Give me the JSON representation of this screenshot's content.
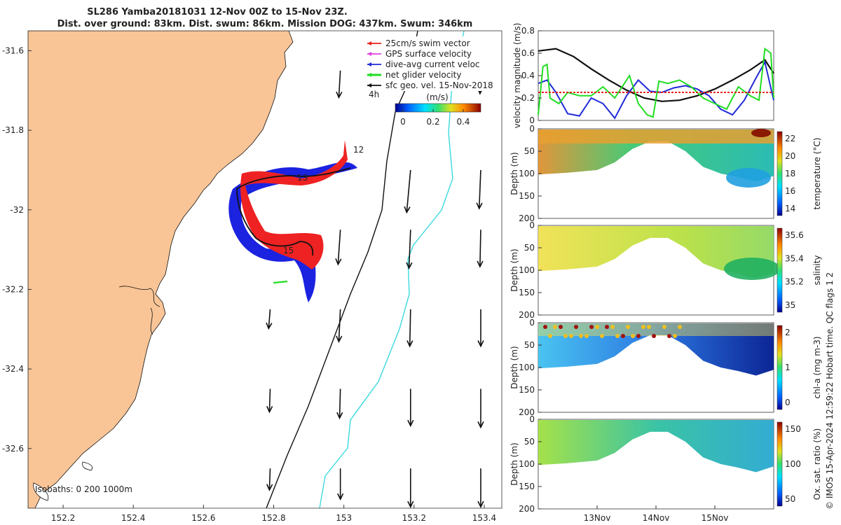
{
  "header": {
    "title_line1": "SL286 Yamba20181031 12-Nov 00Z to 15-Nov 23Z.",
    "title_line2": "Dist. over ground: 83km. Dist. swum: 86km. Mission DOG: 437km. Swum: 346km"
  },
  "map": {
    "lat_ticks": [
      "-31.6",
      "-31.8",
      "-32",
      "-32.2",
      "-32.4",
      "-32.6"
    ],
    "lon_ticks": [
      "152.2",
      "152.4",
      "152.6",
      "152.8",
      "153",
      "153.2",
      "153.4"
    ],
    "day_labels": [
      "12",
      "13",
      "15"
    ],
    "legend": [
      {
        "label": "25cm/s swim vector",
        "color": "#e8201a"
      },
      {
        "label": "GPS surface velocity",
        "color": "#e040e0"
      },
      {
        "label": "dive-avg current veloc",
        "color": "#1f2ad8"
      },
      {
        "label": "net glider velocity",
        "color": "#22dd22"
      },
      {
        "label": "sfc geo. vel. 15-Nov-2018",
        "color": "#111111"
      }
    ],
    "legend_note": "4h",
    "colorbar_label": "(m/s)",
    "colorbar_ticks": [
      "0",
      "0.2",
      "0.4"
    ],
    "bathy_label": "Isobaths:  0   200  1000m",
    "colors": {
      "land": "#f9c597",
      "track_dive": "#1b22e0",
      "track_swim": "#ee2222",
      "isobath_200": "#111111",
      "isobath_1000": "#3cd9e0"
    }
  },
  "velocity_panel": {
    "ylabel": "velocity magnitude (m/s)",
    "yticks": [
      "0",
      "0.2",
      "0.4",
      "0.6",
      "0.8"
    ]
  },
  "sections": [
    {
      "id": "temperature",
      "ylabel": "Depth (m)",
      "cbar_label": "temperature (°C)",
      "cbar_ticks": [
        "14",
        "16",
        "18",
        "20",
        "22"
      ],
      "yticks": [
        "0",
        "50",
        "100",
        "150",
        "200"
      ]
    },
    {
      "id": "salinity",
      "ylabel": "Depth (m)",
      "cbar_label": "salinity",
      "cbar_ticks": [
        "35",
        "35.2",
        "35.4",
        "35.6"
      ],
      "yticks": [
        "0",
        "50",
        "100",
        "150",
        "200"
      ]
    },
    {
      "id": "chla",
      "ylabel": "Depth (m)",
      "cbar_label": "chl-a (mg m-3)",
      "cbar_ticks": [
        "0",
        "1",
        "2"
      ],
      "yticks": [
        "0",
        "50",
        "100",
        "150",
        "200"
      ]
    },
    {
      "id": "oxygen",
      "ylabel": "Depth (m)",
      "cbar_label": "Ox. sat. ratio (%)",
      "cbar_ticks": [
        "50",
        "100",
        "150"
      ],
      "yticks": [
        "0",
        "50",
        "100",
        "150",
        "200"
      ]
    }
  ],
  "time_ticks": [
    "13Nov",
    "14Nov",
    "15Nov"
  ],
  "credit": "© IMOS 15-Apr-2024 12:59:22 Hobart time. QC flags 1  2",
  "chart_data": [
    {
      "type": "scatter",
      "name": "map",
      "xlim": [
        152.1,
        153.45
      ],
      "ylim": [
        -32.75,
        -31.55
      ],
      "track_points": [
        [
          152.68,
          -31.92
        ],
        [
          152.74,
          -31.9
        ],
        [
          152.82,
          -31.92
        ],
        [
          152.9,
          -31.9
        ],
        [
          152.98,
          -31.89
        ],
        [
          153.01,
          -31.86
        ],
        [
          152.96,
          -31.88
        ],
        [
          152.86,
          -31.93
        ],
        [
          152.75,
          -31.94
        ],
        [
          152.7,
          -31.97
        ],
        [
          152.72,
          -32.05
        ],
        [
          152.78,
          -32.11
        ],
        [
          152.86,
          -32.12
        ],
        [
          152.92,
          -32.08
        ],
        [
          152.95,
          -32.11
        ],
        [
          152.91,
          -32.17
        ]
      ],
      "isobath_200": [
        [
          153.18,
          -31.58
        ],
        [
          153.14,
          -31.8
        ],
        [
          153.12,
          -32.0
        ],
        [
          153.06,
          -32.2
        ],
        [
          152.96,
          -32.4
        ],
        [
          152.86,
          -32.62
        ],
        [
          152.78,
          -32.75
        ]
      ],
      "isobath_1000": [
        [
          153.34,
          -31.58
        ],
        [
          153.29,
          -31.8
        ],
        [
          153.26,
          -31.96
        ],
        [
          153.22,
          -32.06
        ],
        [
          153.18,
          -32.1
        ],
        [
          153.18,
          -32.22
        ],
        [
          153.1,
          -32.4
        ],
        [
          153.02,
          -32.54
        ],
        [
          152.98,
          -32.62
        ],
        [
          152.94,
          -32.75
        ]
      ],
      "coastline": [
        [
          152.35,
          -31.55
        ],
        [
          152.34,
          -31.62
        ],
        [
          152.32,
          -31.7
        ],
        [
          152.28,
          -31.78
        ],
        [
          152.2,
          -31.88
        ],
        [
          152.16,
          -31.97
        ],
        [
          152.12,
          -32.05
        ],
        [
          152.1,
          -32.12
        ]
      ],
      "geo_vectors": [
        {
          "lon": 152.99,
          "lat": -31.65,
          "u": -0.02,
          "v": -0.35
        },
        {
          "lon": 153.39,
          "lat": -31.65,
          "u": -0.01,
          "v": -0.3
        },
        {
          "lon": 153.19,
          "lat": -31.9,
          "u": -0.05,
          "v": -0.55
        },
        {
          "lon": 153.39,
          "lat": -31.9,
          "u": -0.02,
          "v": -0.5
        },
        {
          "lon": 152.99,
          "lat": -32.05,
          "u": -0.03,
          "v": -0.45
        },
        {
          "lon": 153.19,
          "lat": -32.05,
          "u": -0.02,
          "v": -0.5
        },
        {
          "lon": 153.39,
          "lat": -32.05,
          "u": -0.01,
          "v": -0.48
        },
        {
          "lon": 152.79,
          "lat": -32.25,
          "u": -0.02,
          "v": -0.25
        },
        {
          "lon": 152.99,
          "lat": -32.25,
          "u": -0.02,
          "v": -0.42
        },
        {
          "lon": 153.19,
          "lat": -32.25,
          "u": -0.01,
          "v": -0.48
        },
        {
          "lon": 153.39,
          "lat": -32.25,
          "u": 0.0,
          "v": -0.48
        },
        {
          "lon": 152.79,
          "lat": -32.45,
          "u": -0.01,
          "v": -0.3
        },
        {
          "lon": 152.99,
          "lat": -32.45,
          "u": -0.01,
          "v": -0.38
        },
        {
          "lon": 153.19,
          "lat": -32.45,
          "u": 0.0,
          "v": -0.48
        },
        {
          "lon": 153.39,
          "lat": -32.45,
          "u": 0.0,
          "v": -0.5
        },
        {
          "lon": 152.79,
          "lat": -32.65,
          "u": -0.01,
          "v": -0.28
        },
        {
          "lon": 152.99,
          "lat": -32.65,
          "u": 0.0,
          "v": -0.4
        },
        {
          "lon": 153.19,
          "lat": -32.65,
          "u": 0.0,
          "v": -0.5
        },
        {
          "lon": 153.39,
          "lat": -32.65,
          "u": 0.0,
          "v": -0.5
        }
      ]
    },
    {
      "type": "line",
      "name": "velocity",
      "xlim": [
        12.0,
        16.0
      ],
      "ylim": [
        0,
        0.8
      ],
      "series": [
        {
          "color": "#111111",
          "x": [
            12.0,
            12.3,
            12.6,
            12.9,
            13.2,
            13.5,
            13.8,
            14.1,
            14.4,
            14.7,
            15.0,
            15.3,
            15.6,
            15.85,
            16.0
          ],
          "y": [
            0.62,
            0.64,
            0.57,
            0.46,
            0.36,
            0.27,
            0.2,
            0.17,
            0.18,
            0.22,
            0.28,
            0.36,
            0.45,
            0.54,
            0.42
          ]
        },
        {
          "color": "#1f2ad8",
          "x": [
            12.0,
            12.15,
            12.3,
            12.5,
            12.7,
            12.9,
            13.1,
            13.3,
            13.5,
            13.7,
            13.9,
            14.1,
            14.3,
            14.5,
            14.7,
            14.9,
            15.1,
            15.3,
            15.5,
            15.7,
            15.85,
            16.0
          ],
          "y": [
            0.33,
            0.36,
            0.25,
            0.06,
            0.04,
            0.2,
            0.15,
            0.02,
            0.22,
            0.36,
            0.26,
            0.25,
            0.29,
            0.31,
            0.28,
            0.22,
            0.1,
            0.05,
            0.18,
            0.38,
            0.52,
            0.18
          ]
        },
        {
          "color": "#22dd22",
          "x": [
            12.0,
            12.08,
            12.15,
            12.2,
            12.35,
            12.5,
            12.7,
            12.9,
            13.1,
            13.3,
            13.45,
            13.55,
            13.7,
            13.85,
            13.95,
            14.05,
            14.2,
            14.4,
            14.6,
            14.8,
            15.0,
            15.2,
            15.4,
            15.6,
            15.75,
            15.85,
            15.95,
            16.0
          ],
          "y": [
            0.05,
            0.48,
            0.5,
            0.2,
            0.15,
            0.25,
            0.22,
            0.22,
            0.3,
            0.2,
            0.32,
            0.4,
            0.15,
            0.05,
            0.03,
            0.35,
            0.33,
            0.36,
            0.3,
            0.2,
            0.15,
            0.1,
            0.3,
            0.22,
            0.18,
            0.64,
            0.6,
            0.2
          ]
        },
        {
          "color": "#e8201a",
          "x": [
            12.0,
            16.0
          ],
          "y": [
            0.25,
            0.25
          ]
        }
      ]
    },
    {
      "type": "heatmap",
      "name": "depth-sections",
      "x_days": [
        12.0,
        12.5,
        13.0,
        13.3,
        13.6,
        13.9,
        14.2,
        14.5,
        14.8,
        15.1,
        15.4,
        15.7,
        16.0
      ],
      "bottom_depth_m": [
        102,
        98,
        92,
        75,
        45,
        28,
        28,
        50,
        85,
        100,
        108,
        118,
        105
      ],
      "ylim": [
        200,
        0
      ]
    }
  ]
}
